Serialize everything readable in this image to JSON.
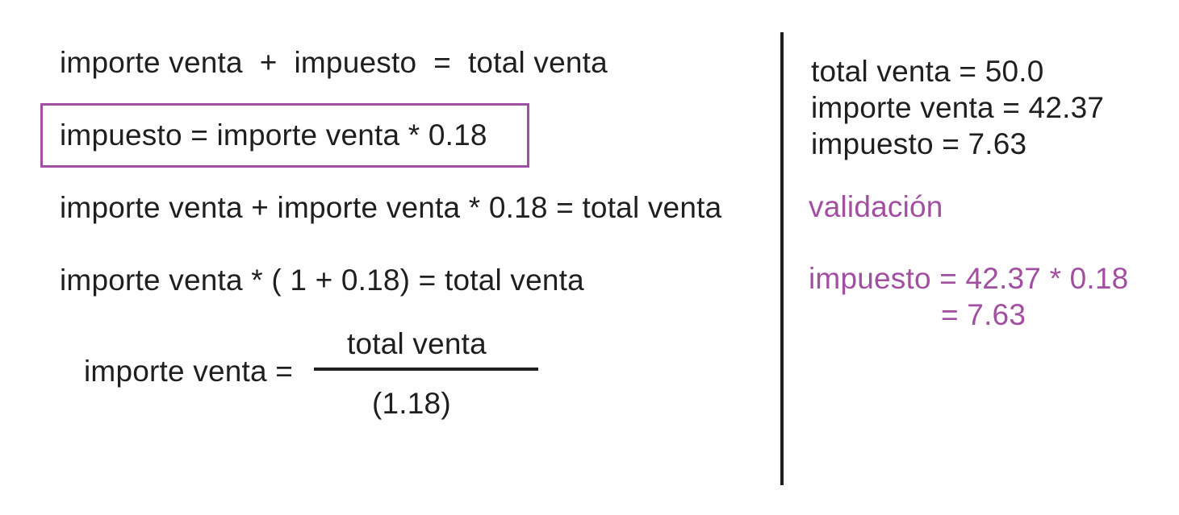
{
  "left": {
    "eq1": "importe venta  +  impuesto  =  total venta",
    "eq2": "impuesto = importe venta * 0.18",
    "eq3": "importe venta + importe venta * 0.18 = total venta",
    "eq4": "importe venta * ( 1 + 0.18) = total venta",
    "eq5_lhs": "importe venta =",
    "eq5_numerator": "total venta",
    "eq5_denominator": "(1.18)"
  },
  "right": {
    "total_line": "total venta = 50.0",
    "importe_line": "importe venta = 42.37",
    "impuesto_line": "impuesto = 7.63",
    "validation_label": "validación",
    "check_line1": "impuesto = 42.37 * 0.18",
    "check_line2": "= 7.63"
  },
  "colors": {
    "text": "#1f1f1f",
    "accent": "#a24fa2"
  }
}
